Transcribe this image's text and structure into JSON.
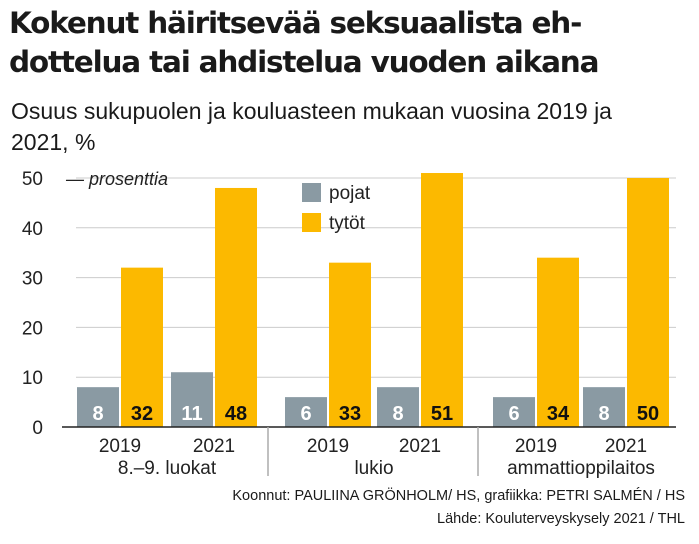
{
  "title": "Kokenut häiritsevää seksuaalista eh-dottelua tai ahdistelua vuoden aikana",
  "subtitle": "Osuus sukupuolen ja kouluasteen mukaan vuosina 2019 ja 2021, %",
  "credits": {
    "compiled_by": "Koonnut: PAULIINA GRÖNHOLM/ HS, grafiikka: PETRI SALMÉN / HS",
    "source": "Lähde: Kouluterveyskysely 2021 / THL"
  },
  "colors": {
    "pojat": "#8a9aa3",
    "tytot": "#fcb900",
    "axis": "#222222",
    "grid": "#cccccc"
  },
  "chart_data": {
    "type": "bar",
    "title": "Kokenut häiritsevää seksuaalista eh-dottelua tai ahdistelua vuoden aikana",
    "subtitle": "Osuus sukupuolen ja kouluasteen mukaan vuosina 2019 ja 2021, %",
    "ylabel": "prosenttia",
    "ylim": [
      0,
      50
    ],
    "yticks": [
      0,
      10,
      20,
      30,
      40,
      50
    ],
    "unit_label": "— prosenttia",
    "legend": [
      "pojat",
      "tytöt"
    ],
    "legend_position": "top-left-center",
    "groups": [
      {
        "name": "8.–9. luokat",
        "categories": [
          "2019",
          "2021"
        ]
      },
      {
        "name": "lukio",
        "categories": [
          "2019",
          "2021"
        ]
      },
      {
        "name": "ammattioppilaitos",
        "categories": [
          "2019",
          "2021"
        ]
      }
    ],
    "categories": [
      "2019",
      "2021",
      "2019",
      "2021",
      "2019",
      "2021"
    ],
    "series": [
      {
        "name": "pojat",
        "values": [
          8,
          11,
          6,
          8,
          6,
          8
        ]
      },
      {
        "name": "tytöt",
        "values": [
          32,
          48,
          33,
          51,
          34,
          50
        ]
      }
    ]
  }
}
